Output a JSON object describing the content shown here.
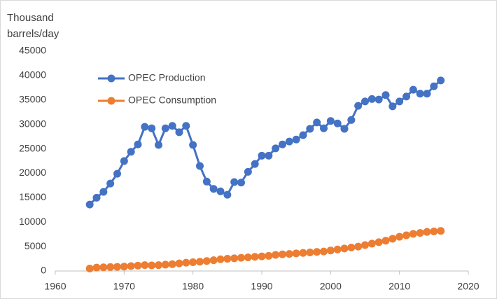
{
  "chart_data": {
    "type": "line",
    "y_label": "Thousand barrels/day",
    "x": [
      1965,
      1966,
      1967,
      1968,
      1969,
      1970,
      1971,
      1972,
      1973,
      1974,
      1975,
      1976,
      1977,
      1978,
      1979,
      1980,
      1981,
      1982,
      1983,
      1984,
      1985,
      1986,
      1987,
      1988,
      1989,
      1990,
      1991,
      1992,
      1993,
      1994,
      1995,
      1996,
      1997,
      1998,
      1999,
      2000,
      2001,
      2002,
      2003,
      2004,
      2005,
      2006,
      2007,
      2008,
      2009,
      2010,
      2011,
      2012,
      2013,
      2014,
      2015,
      2016
    ],
    "series": [
      {
        "name": "OPEC Production",
        "color": "#4472c4",
        "values": [
          13600,
          15000,
          16200,
          17900,
          19900,
          22500,
          24400,
          25900,
          29500,
          29200,
          25800,
          29200,
          29700,
          28400,
          29700,
          25800,
          21500,
          18300,
          16800,
          16300,
          15600,
          18200,
          18100,
          20300,
          21900,
          23600,
          23600,
          25100,
          25900,
          26500,
          26900,
          27800,
          29100,
          30400,
          29200,
          30700,
          30200,
          29100,
          30900,
          33800,
          34700,
          35200,
          35100,
          36000,
          33700,
          34700,
          35700,
          37100,
          36300,
          36300,
          37800,
          39000
        ]
      },
      {
        "name": "OPEC Consumption",
        "color": "#ed7d31",
        "values": [
          500,
          700,
          750,
          800,
          850,
          900,
          1000,
          1100,
          1200,
          1150,
          1200,
          1300,
          1400,
          1550,
          1700,
          1800,
          1900,
          2050,
          2200,
          2400,
          2500,
          2600,
          2700,
          2800,
          2900,
          3000,
          3100,
          3300,
          3400,
          3500,
          3600,
          3700,
          3800,
          3900,
          4000,
          4200,
          4400,
          4600,
          4800,
          5000,
          5300,
          5600,
          5900,
          6200,
          6600,
          7000,
          7300,
          7600,
          7800,
          8000,
          8100,
          8200
        ]
      }
    ],
    "xlim": [
      1960,
      2020
    ],
    "xticks": [
      1960,
      1970,
      1980,
      1990,
      2000,
      2010,
      2020
    ],
    "ylim": [
      0,
      45000
    ],
    "yticks": [
      0,
      5000,
      10000,
      15000,
      20000,
      25000,
      30000,
      35000,
      40000,
      45000
    ],
    "grid": false,
    "legend": "upper left"
  }
}
